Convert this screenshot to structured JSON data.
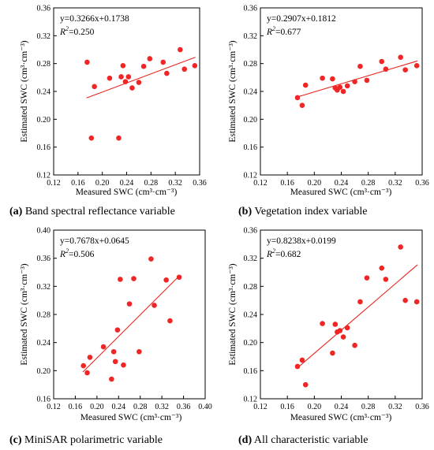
{
  "chart_data": [
    {
      "type": "scatter",
      "caption_letter": "(a)",
      "caption_text": " Band spectral reflectance variable",
      "xlabel": "Measured SWC (cm³·cm⁻³)",
      "ylabel": "Estimated SWC (cm³·cm⁻³)",
      "equation": "y=0.3266x+0.1738",
      "r2_prefix": "R",
      "r2_sup": "2",
      "r2_value": "=0.250",
      "xlim": [
        0.12,
        0.36
      ],
      "ylim": [
        0.12,
        0.36
      ],
      "xticks": [
        "0.12",
        "0.16",
        "0.20",
        "0.24",
        "0.28",
        "0.32",
        "0.36"
      ],
      "yticks": [
        "0.12",
        "0.16",
        "0.20",
        "0.24",
        "0.28",
        "0.32",
        "0.36"
      ],
      "fit_line": {
        "slope": 0.3266,
        "intercept": 0.1738,
        "x_range": [
          0.174,
          0.353
        ]
      },
      "series": [
        {
          "x": [
            0.175,
            0.182,
            0.187,
            0.212,
            0.227,
            0.231,
            0.234,
            0.238,
            0.243,
            0.249,
            0.26,
            0.268,
            0.278,
            0.3,
            0.306,
            0.328,
            0.335,
            0.352
          ],
          "y": [
            0.282,
            0.173,
            0.247,
            0.259,
            0.173,
            0.261,
            0.277,
            0.254,
            0.261,
            0.245,
            0.253,
            0.276,
            0.287,
            0.282,
            0.266,
            0.3,
            0.272,
            0.277
          ]
        }
      ]
    },
    {
      "type": "scatter",
      "caption_letter": "(b)",
      "caption_text": " Vegetation index variable",
      "xlabel": "Measured SWC (cm³·cm⁻³)",
      "ylabel": "Estimated SWC (cm³·cm⁻³)",
      "equation": "y=0.2907x+0.1812",
      "r2_prefix": "R",
      "r2_sup": "2",
      "r2_value": "=0.677",
      "xlim": [
        0.12,
        0.36
      ],
      "ylim": [
        0.12,
        0.36
      ],
      "xticks": [
        "0.12",
        "0.16",
        "0.20",
        "0.24",
        "0.28",
        "0.32",
        "0.36"
      ],
      "yticks": [
        "0.12",
        "0.16",
        "0.20",
        "0.24",
        "0.28",
        "0.32",
        "0.36"
      ],
      "fit_line": {
        "slope": 0.2907,
        "intercept": 0.1812,
        "x_range": [
          0.174,
          0.353
        ]
      },
      "series": [
        {
          "x": [
            0.175,
            0.182,
            0.187,
            0.212,
            0.227,
            0.231,
            0.234,
            0.238,
            0.243,
            0.249,
            0.26,
            0.268,
            0.278,
            0.3,
            0.306,
            0.328,
            0.335,
            0.352
          ],
          "y": [
            0.231,
            0.22,
            0.249,
            0.259,
            0.258,
            0.245,
            0.242,
            0.246,
            0.24,
            0.248,
            0.254,
            0.276,
            0.256,
            0.283,
            0.272,
            0.289,
            0.271,
            0.277
          ]
        }
      ]
    },
    {
      "type": "scatter",
      "caption_letter": "(c)",
      "caption_text": " MiniSAR polarimetric variable",
      "xlabel": "Measured SWC (cm³·cm⁻³)",
      "ylabel": "Estimated SWC (cm³·cm⁻³)",
      "equation": "y=0.7678x+0.0645",
      "r2_prefix": "R",
      "r2_sup": "2",
      "r2_value": "=0.506",
      "xlim": [
        0.12,
        0.4
      ],
      "ylim": [
        0.16,
        0.4
      ],
      "xticks": [
        "0.12",
        "0.16",
        "0.20",
        "0.24",
        "0.28",
        "0.32",
        "0.36",
        "0.40"
      ],
      "yticks": [
        "0.16",
        "0.20",
        "0.24",
        "0.28",
        "0.32",
        "0.36",
        "0.40"
      ],
      "fit_line": {
        "slope": 0.7678,
        "intercept": 0.0645,
        "x_range": [
          0.174,
          0.353
        ]
      },
      "series": [
        {
          "x": [
            0.175,
            0.182,
            0.187,
            0.212,
            0.227,
            0.231,
            0.234,
            0.238,
            0.243,
            0.249,
            0.26,
            0.268,
            0.278,
            0.3,
            0.306,
            0.328,
            0.335,
            0.352
          ],
          "y": [
            0.207,
            0.197,
            0.219,
            0.234,
            0.188,
            0.227,
            0.213,
            0.258,
            0.33,
            0.208,
            0.295,
            0.331,
            0.227,
            0.359,
            0.293,
            0.329,
            0.271,
            0.333
          ]
        }
      ]
    },
    {
      "type": "scatter",
      "caption_letter": "(d)",
      "caption_text": " All characteristic variable",
      "xlabel": "Measured SWC (cm³·cm⁻³)",
      "ylabel": "Estimated SWC (cm³·cm⁻³)",
      "equation": "y=0.8238x+0.0199",
      "r2_prefix": "R",
      "r2_sup": "2",
      "r2_value": "=0.682",
      "xlim": [
        0.12,
        0.36
      ],
      "ylim": [
        0.12,
        0.36
      ],
      "xticks": [
        "0.12",
        "0.16",
        "0.20",
        "0.24",
        "0.28",
        "0.32",
        "0.36"
      ],
      "yticks": [
        "0.12",
        "0.16",
        "0.20",
        "0.24",
        "0.28",
        "0.32",
        "0.36"
      ],
      "fit_line": {
        "slope": 0.8238,
        "intercept": 0.0199,
        "x_range": [
          0.174,
          0.353
        ]
      },
      "series": [
        {
          "x": [
            0.175,
            0.182,
            0.187,
            0.212,
            0.227,
            0.231,
            0.234,
            0.238,
            0.243,
            0.249,
            0.26,
            0.268,
            0.278,
            0.3,
            0.306,
            0.328,
            0.335,
            0.352
          ],
          "y": [
            0.166,
            0.175,
            0.14,
            0.227,
            0.185,
            0.226,
            0.215,
            0.217,
            0.208,
            0.221,
            0.196,
            0.258,
            0.292,
            0.306,
            0.29,
            0.336,
            0.26,
            0.258
          ]
        }
      ]
    }
  ],
  "colors": {
    "marker": "#f02626",
    "fit_line": "#e8261f",
    "axis": "#000000",
    "background": "#ffffff"
  }
}
